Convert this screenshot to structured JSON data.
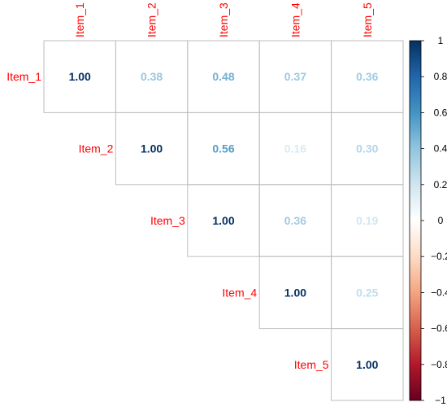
{
  "chart_data": {
    "type": "heatmap",
    "variables": [
      "Item_1",
      "Item_2",
      "Item_3",
      "Item_4",
      "Item_5"
    ],
    "matrix_layout": "upper",
    "cells": [
      {
        "row": 0,
        "col": 0,
        "label": "1.00",
        "value": 1.0
      },
      {
        "row": 0,
        "col": 1,
        "label": "0.38",
        "value": 0.38
      },
      {
        "row": 0,
        "col": 2,
        "label": "0.48",
        "value": 0.48
      },
      {
        "row": 0,
        "col": 3,
        "label": "0.37",
        "value": 0.37
      },
      {
        "row": 0,
        "col": 4,
        "label": "0.36",
        "value": 0.36
      },
      {
        "row": 1,
        "col": 1,
        "label": "1.00",
        "value": 1.0
      },
      {
        "row": 1,
        "col": 2,
        "label": "0.56",
        "value": 0.56
      },
      {
        "row": 1,
        "col": 3,
        "label": "0.16",
        "value": 0.16
      },
      {
        "row": 1,
        "col": 4,
        "label": "0.30",
        "value": 0.3
      },
      {
        "row": 2,
        "col": 2,
        "label": "1.00",
        "value": 1.0
      },
      {
        "row": 2,
        "col": 3,
        "label": "0.36",
        "value": 0.36
      },
      {
        "row": 2,
        "col": 4,
        "label": "0.19",
        "value": 0.19
      },
      {
        "row": 3,
        "col": 3,
        "label": "1.00",
        "value": 1.0
      },
      {
        "row": 3,
        "col": 4,
        "label": "0.25",
        "value": 0.25
      },
      {
        "row": 4,
        "col": 4,
        "label": "1.00",
        "value": 1.0
      }
    ],
    "colorbar": {
      "range": [
        -1,
        1
      ],
      "ticks": [
        "1",
        "0.8",
        "0.6",
        "0.4",
        "0.2",
        "0",
        "−0.2",
        "−0.4",
        "−0.6",
        "−0.8",
        "−1"
      ],
      "tick_values": [
        1,
        0.8,
        0.6,
        0.4,
        0.2,
        0,
        -0.2,
        -0.4,
        -0.6,
        -0.8,
        -1
      ],
      "colors": [
        "#67001F",
        "#B2182B",
        "#D6604D",
        "#F4A582",
        "#FDDBC7",
        "#FFFFFF",
        "#D1E5F0",
        "#92C5DE",
        "#4393C3",
        "#2166AC",
        "#053061"
      ]
    },
    "label_color": "#FF0000",
    "grid_color": "#BEBEBE"
  }
}
